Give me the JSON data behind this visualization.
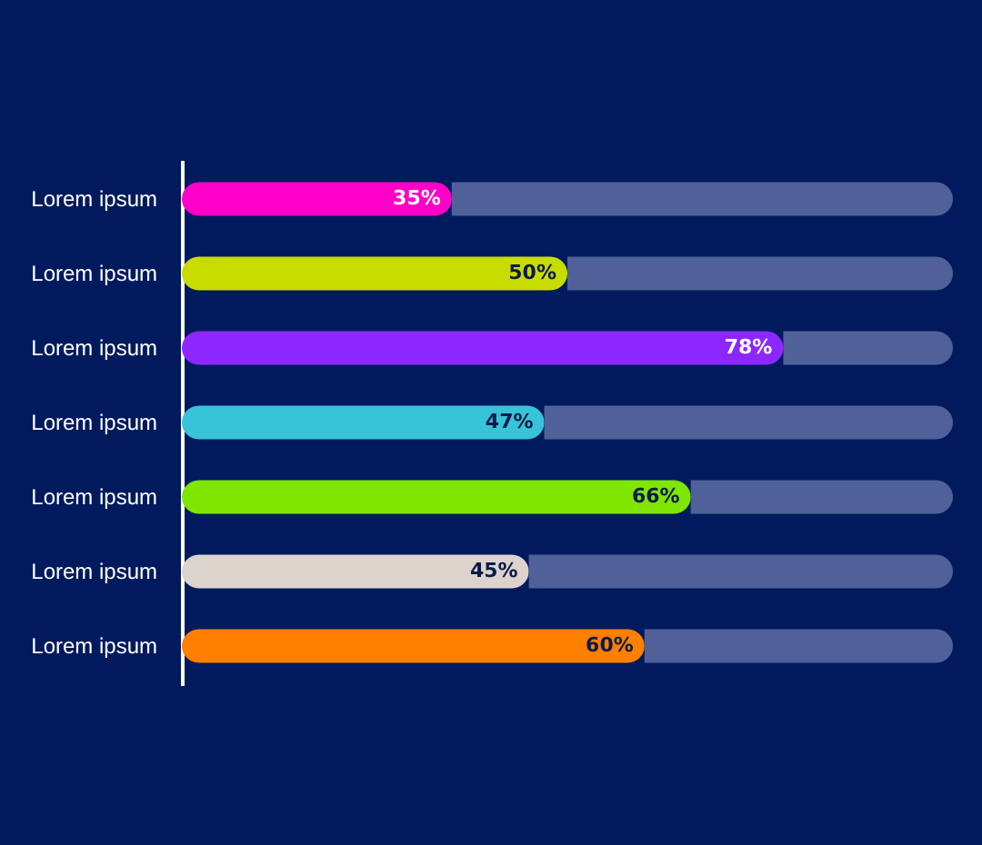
{
  "chart_data": {
    "type": "bar",
    "orientation": "horizontal",
    "stacked": true,
    "categories": [
      "Lorem ipsum",
      "Lorem ipsum",
      "Lorem ipsum",
      "Lorem ipsum",
      "Lorem ipsum",
      "Lorem ipsum",
      "Lorem ipsum"
    ],
    "series": [
      {
        "colors": [
          "#ff00c8",
          "#c8dc00",
          "#8c28ff",
          "#38c4d8",
          "#7ee600",
          "#dcd4cc",
          "#ff7f00"
        ],
        "values": [
          35,
          50,
          78,
          47,
          66,
          45,
          60
        ],
        "value_labels": [
          "35%",
          "50%",
          "78%",
          "47%",
          "66%",
          "45%",
          "60%"
        ]
      },
      {
        "color": "#4f6198",
        "values": [
          65,
          50,
          22,
          53,
          34,
          55,
          40
        ]
      }
    ],
    "xlim": [
      0,
      100
    ],
    "tick_labels": "y",
    "grid": false
  }
}
